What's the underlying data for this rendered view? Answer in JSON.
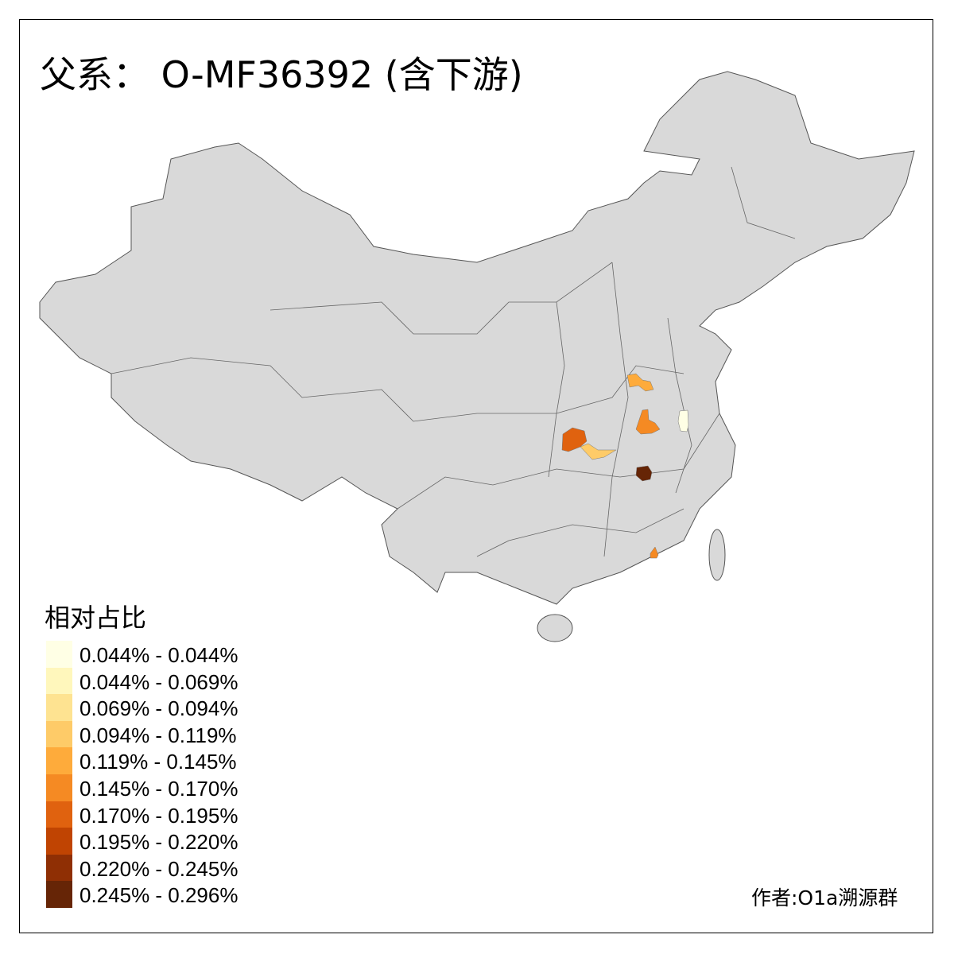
{
  "title": "父系： O-MF36392 (含下游)",
  "legend": {
    "title": "相对占比",
    "items": [
      {
        "label": "0.044% - 0.044%",
        "color": "#FFFFE5"
      },
      {
        "label": "0.044% - 0.069%",
        "color": "#FFF7BC"
      },
      {
        "label": "0.069% - 0.094%",
        "color": "#FEE391"
      },
      {
        "label": "0.094% - 0.119%",
        "color": "#FECB68"
      },
      {
        "label": "0.119% - 0.145%",
        "color": "#FEAB3B"
      },
      {
        "label": "0.145% - 0.170%",
        "color": "#F58A23"
      },
      {
        "label": "0.170% - 0.195%",
        "color": "#E0620F"
      },
      {
        "label": "0.195% - 0.220%",
        "color": "#C04402"
      },
      {
        "label": "0.220% - 0.245%",
        "color": "#8F2F04"
      },
      {
        "label": "0.245% - 0.296%",
        "color": "#662506"
      }
    ]
  },
  "map": {
    "base_color": "#D9D9D9",
    "border_color": "#555555",
    "highlighted_regions": [
      {
        "class": 4,
        "color": "#FEAB3B"
      },
      {
        "class": 5,
        "color": "#F58A23"
      },
      {
        "class": 6,
        "color": "#E0620F"
      },
      {
        "class": 3,
        "color": "#FECB68"
      },
      {
        "class": 0,
        "color": "#FFFFE5"
      },
      {
        "class": 9,
        "color": "#662506"
      },
      {
        "class": 5,
        "color": "#F58A23"
      }
    ]
  },
  "author": "作者:O1a溯源群"
}
